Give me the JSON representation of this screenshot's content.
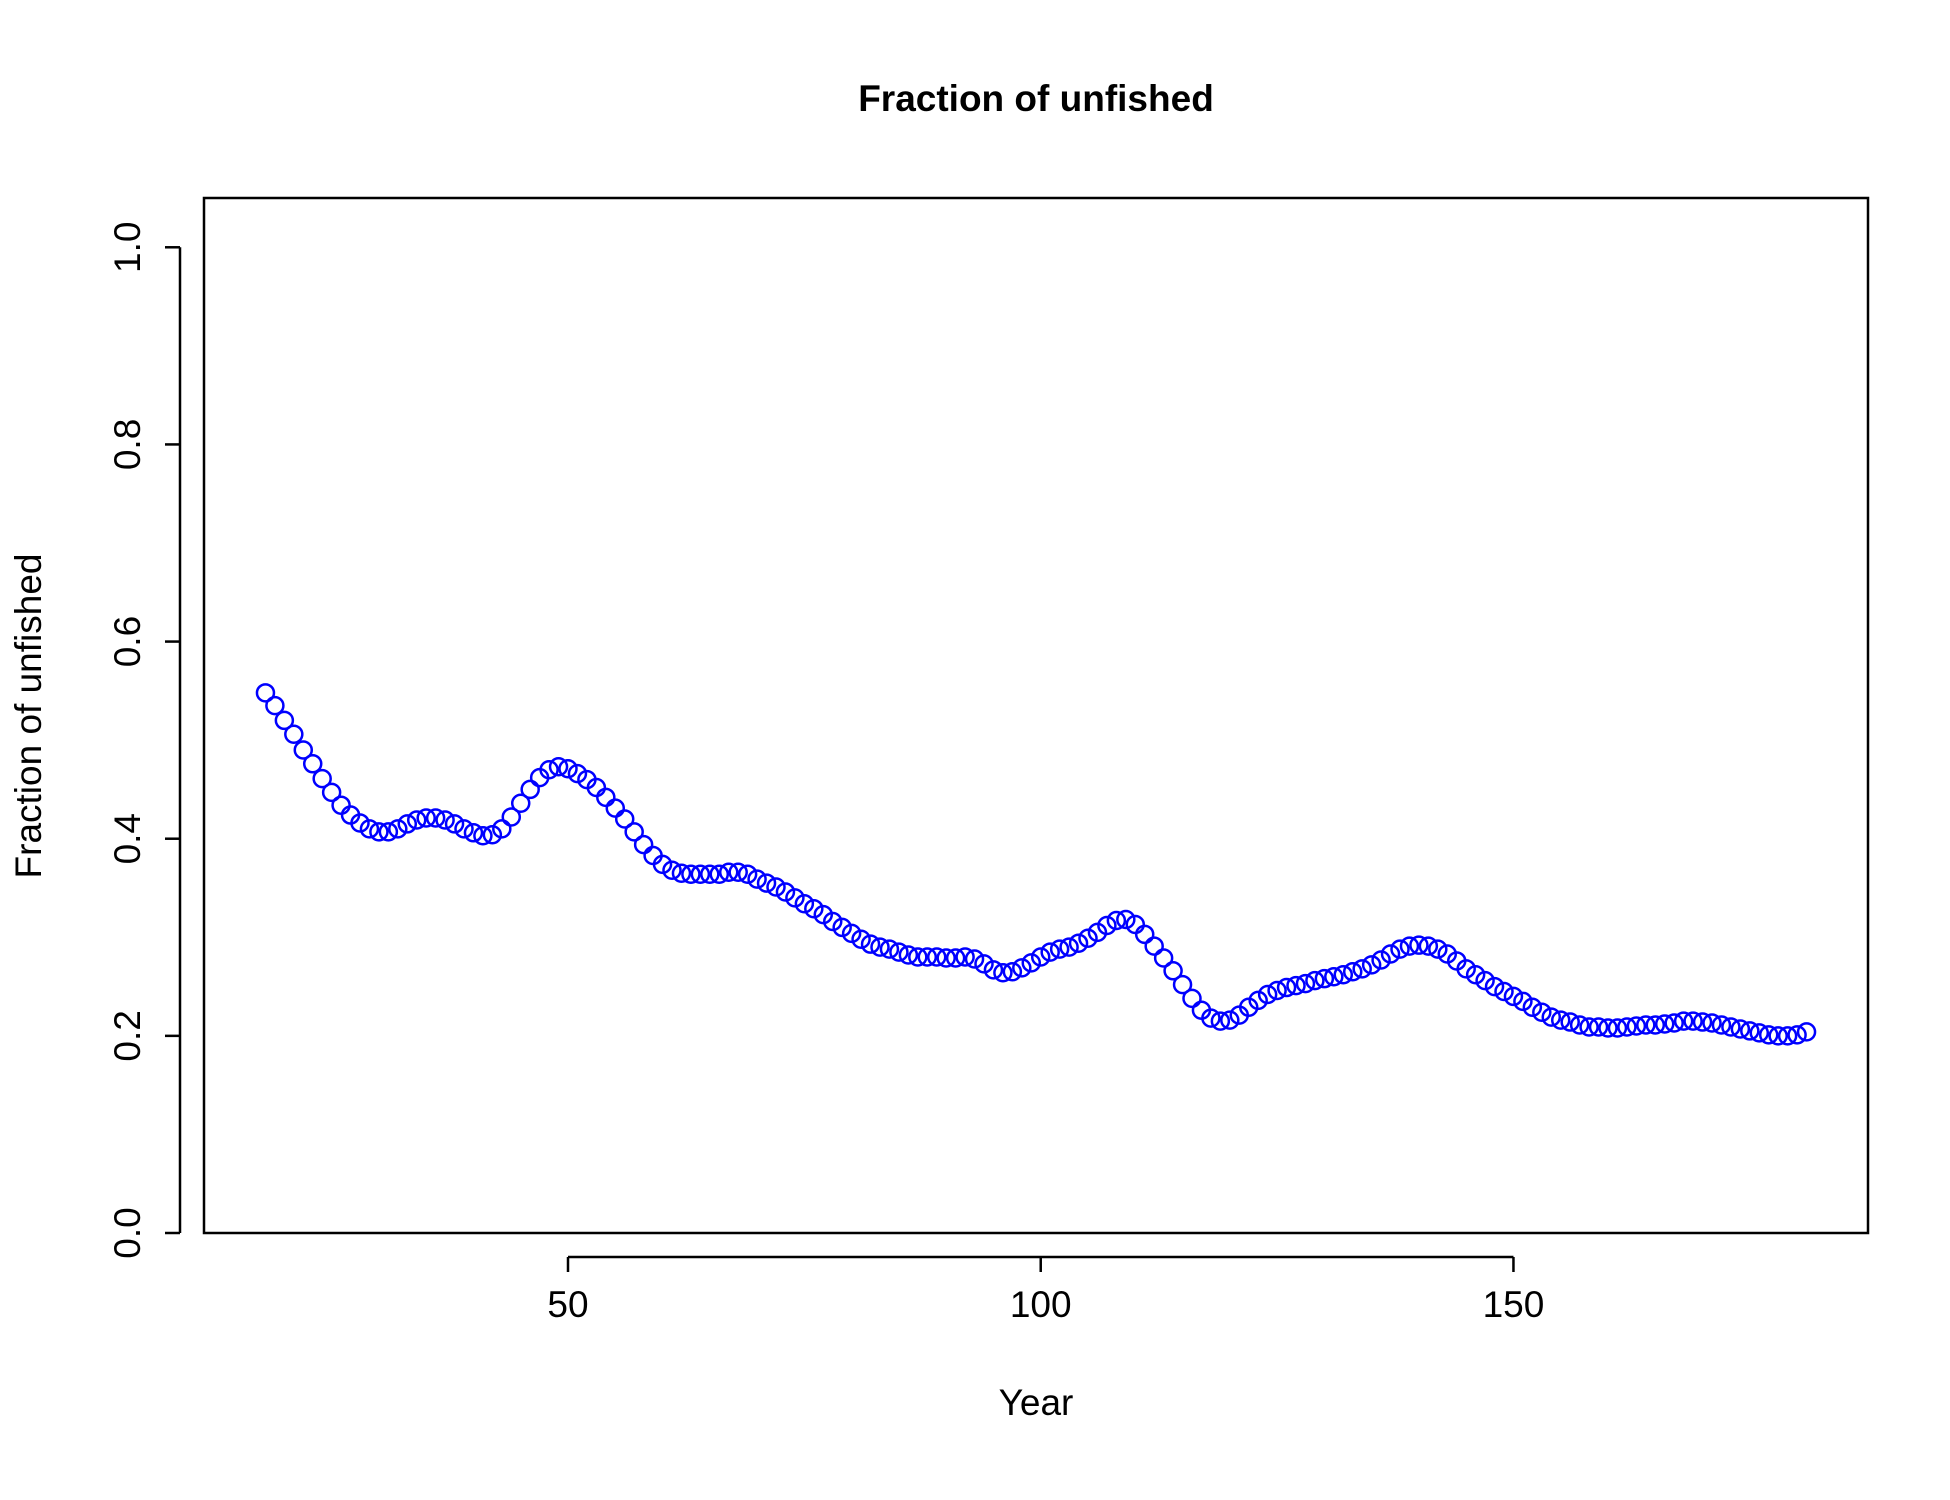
{
  "chart_data": {
    "type": "scatter",
    "title": "Fraction of unfished",
    "x_label": "Year",
    "y_label": "Fraction of unfished",
    "series": [
      {
        "name": "Fraction of unfished",
        "color": "#0000ff",
        "x": [
          18,
          19,
          20,
          21,
          22,
          23,
          24,
          25,
          26,
          27,
          28,
          29,
          30,
          31,
          32,
          33,
          34,
          35,
          36,
          37,
          38,
          39,
          40,
          41,
          42,
          43,
          44,
          45,
          46,
          47,
          48,
          49,
          50,
          51,
          52,
          53,
          54,
          55,
          56,
          57,
          58,
          59,
          60,
          61,
          62,
          63,
          64,
          65,
          66,
          67,
          68,
          69,
          70,
          71,
          72,
          73,
          74,
          75,
          76,
          77,
          78,
          79,
          80,
          81,
          82,
          83,
          84,
          85,
          86,
          87,
          88,
          89,
          90,
          91,
          92,
          93,
          94,
          95,
          96,
          97,
          98,
          99,
          100,
          101,
          102,
          103,
          104,
          105,
          106,
          107,
          108,
          109,
          110,
          111,
          112,
          113,
          114,
          115,
          116,
          117,
          118,
          119,
          120,
          121,
          122,
          123,
          124,
          125,
          126,
          127,
          128,
          129,
          130,
          131,
          132,
          133,
          134,
          135,
          136,
          137,
          138,
          139,
          140,
          141,
          142,
          143,
          144,
          145,
          146,
          147,
          148,
          149,
          150,
          151,
          152,
          153,
          154,
          155,
          156,
          157,
          158,
          159,
          160,
          161,
          162,
          163,
          164,
          165,
          166,
          167,
          168,
          169,
          170,
          171,
          172,
          173,
          174,
          175,
          176,
          177,
          178,
          179,
          180,
          181
        ],
        "values": [
          0.548,
          0.535,
          0.52,
          0.506,
          0.49,
          0.476,
          0.461,
          0.447,
          0.434,
          0.424,
          0.416,
          0.41,
          0.407,
          0.407,
          0.41,
          0.415,
          0.419,
          0.421,
          0.421,
          0.419,
          0.415,
          0.41,
          0.406,
          0.403,
          0.404,
          0.41,
          0.422,
          0.436,
          0.45,
          0.462,
          0.47,
          0.473,
          0.471,
          0.466,
          0.46,
          0.452,
          0.442,
          0.431,
          0.42,
          0.407,
          0.394,
          0.383,
          0.374,
          0.368,
          0.365,
          0.364,
          0.364,
          0.364,
          0.364,
          0.366,
          0.366,
          0.364,
          0.359,
          0.355,
          0.351,
          0.346,
          0.34,
          0.334,
          0.329,
          0.323,
          0.316,
          0.31,
          0.304,
          0.298,
          0.293,
          0.29,
          0.288,
          0.285,
          0.282,
          0.28,
          0.28,
          0.28,
          0.279,
          0.279,
          0.28,
          0.278,
          0.273,
          0.267,
          0.264,
          0.265,
          0.269,
          0.274,
          0.28,
          0.285,
          0.288,
          0.29,
          0.294,
          0.299,
          0.305,
          0.312,
          0.317,
          0.318,
          0.313,
          0.303,
          0.291,
          0.279,
          0.266,
          0.252,
          0.238,
          0.226,
          0.218,
          0.215,
          0.216,
          0.221,
          0.229,
          0.236,
          0.242,
          0.246,
          0.249,
          0.251,
          0.253,
          0.256,
          0.258,
          0.26,
          0.262,
          0.265,
          0.268,
          0.272,
          0.277,
          0.283,
          0.288,
          0.291,
          0.292,
          0.291,
          0.288,
          0.283,
          0.276,
          0.268,
          0.262,
          0.256,
          0.25,
          0.245,
          0.24,
          0.235,
          0.229,
          0.224,
          0.219,
          0.216,
          0.214,
          0.211,
          0.209,
          0.209,
          0.208,
          0.208,
          0.209,
          0.21,
          0.211,
          0.211,
          0.212,
          0.213,
          0.215,
          0.215,
          0.214,
          0.213,
          0.211,
          0.209,
          0.207,
          0.205,
          0.203,
          0.201,
          0.2,
          0.2,
          0.201,
          0.204
        ]
      }
    ],
    "xlim": [
      11.5,
      187.5
    ],
    "xticks": [
      50,
      100,
      150
    ],
    "ylim": [
      0,
      1.05
    ],
    "yticks": [
      {
        "value": 0,
        "label": "0.0"
      },
      0.2,
      0.4,
      0.6,
      0.8,
      {
        "value": 1,
        "label": "1.0"
      }
    ]
  }
}
